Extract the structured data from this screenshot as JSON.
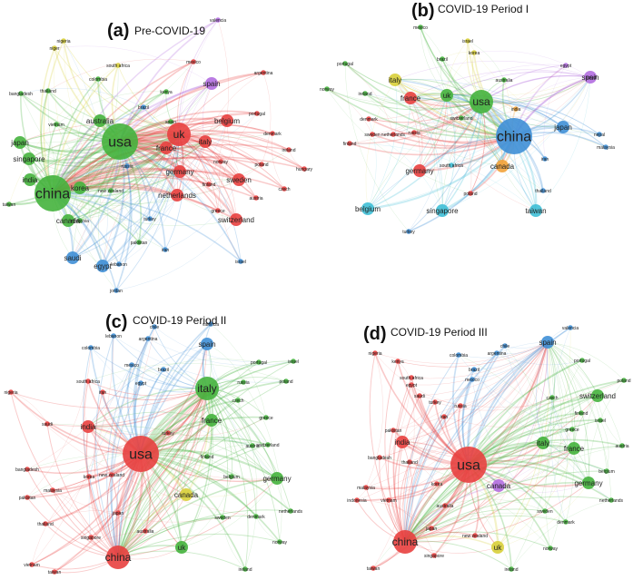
{
  "panels": [
    {
      "id": "a",
      "letter": "(a)",
      "subtitle": "Pre-COVID-19",
      "nodes": [
        {
          "label": "usa",
          "c": "green",
          "s": 3
        },
        {
          "label": "china",
          "c": "green",
          "s": 3
        },
        {
          "label": "uk",
          "c": "red",
          "s": 2
        },
        {
          "label": "france",
          "c": "red",
          "s": 1
        },
        {
          "label": "italy",
          "c": "red",
          "s": 1
        },
        {
          "label": "germany",
          "c": "red",
          "s": 1
        },
        {
          "label": "australia",
          "c": "green",
          "s": 1
        },
        {
          "label": "japan",
          "c": "green",
          "s": 1
        },
        {
          "label": "singapore",
          "c": "green",
          "s": 1
        },
        {
          "label": "india",
          "c": "green",
          "s": 1
        },
        {
          "label": "korea",
          "c": "green",
          "s": 1
        },
        {
          "label": "canada",
          "c": "green",
          "s": 1
        },
        {
          "label": "saudi",
          "c": "blue",
          "s": 1
        },
        {
          "label": "egypt",
          "c": "blue",
          "s": 1
        },
        {
          "label": "spain",
          "c": "purple",
          "s": 1
        },
        {
          "label": "mexico",
          "c": "red",
          "s": 0
        },
        {
          "label": "brazil",
          "c": "blue",
          "s": 0
        },
        {
          "label": "kenya",
          "c": "green",
          "s": 0
        },
        {
          "label": "south africa",
          "c": "yellow",
          "s": 0
        },
        {
          "label": "colombia",
          "c": "green",
          "s": 0
        },
        {
          "label": "nigeria",
          "c": "yellow",
          "s": 0
        },
        {
          "label": "niger",
          "c": "yellow",
          "s": 0
        },
        {
          "label": "thailand",
          "c": "green",
          "s": 0
        },
        {
          "label": "bangladesh",
          "c": "green",
          "s": 0
        },
        {
          "label": "vietnam",
          "c": "green",
          "s": 0
        },
        {
          "label": "taiwan",
          "c": "green",
          "s": 0
        },
        {
          "label": "malaysia",
          "c": "green",
          "s": 0
        },
        {
          "label": "pakistan",
          "c": "green",
          "s": 0
        },
        {
          "label": "lebanon",
          "c": "blue",
          "s": 0
        },
        {
          "label": "jordan",
          "c": "blue",
          "s": 0
        },
        {
          "label": "iran",
          "c": "blue",
          "s": 0
        },
        {
          "label": "turkey",
          "c": "blue",
          "s": 0
        },
        {
          "label": "russia",
          "c": "blue",
          "s": 0
        },
        {
          "label": "spain",
          "c": "green",
          "s": 0
        },
        {
          "label": "new zealand",
          "c": "green",
          "s": 0
        },
        {
          "label": "netherlands",
          "c": "red",
          "s": 1
        },
        {
          "label": "switzerland",
          "c": "red",
          "s": 1
        },
        {
          "label": "sweden",
          "c": "red",
          "s": 1
        },
        {
          "label": "belgium",
          "c": "red",
          "s": 1
        },
        {
          "label": "portugal",
          "c": "red",
          "s": 0
        },
        {
          "label": "denmark",
          "c": "red",
          "s": 0
        },
        {
          "label": "ireland",
          "c": "red",
          "s": 0
        },
        {
          "label": "poland",
          "c": "red",
          "s": 0
        },
        {
          "label": "finland",
          "c": "red",
          "s": 0
        },
        {
          "label": "norway",
          "c": "red",
          "s": 0
        },
        {
          "label": "austria",
          "c": "red",
          "s": 0
        },
        {
          "label": "greece",
          "c": "red",
          "s": 0
        },
        {
          "label": "czech",
          "c": "red",
          "s": 0
        },
        {
          "label": "hungary",
          "c": "red",
          "s": 0
        },
        {
          "label": "argentina",
          "c": "red",
          "s": 0
        },
        {
          "label": "valencia",
          "c": "purple",
          "s": 0
        },
        {
          "label": "israel",
          "c": "blue",
          "s": 0
        }
      ]
    },
    {
      "id": "b",
      "letter": "(b)",
      "subtitle": "COVID-19 Period I",
      "nodes": [
        {
          "label": "china",
          "c": "blue",
          "s": 3
        },
        {
          "label": "usa",
          "c": "green",
          "s": 2
        },
        {
          "label": "uk",
          "c": "green",
          "s": 1
        },
        {
          "label": "france",
          "c": "red",
          "s": 1
        },
        {
          "label": "italy",
          "c": "yellow",
          "s": 1
        },
        {
          "label": "spain",
          "c": "purple",
          "s": 1
        },
        {
          "label": "canada",
          "c": "orange",
          "s": 1
        },
        {
          "label": "germany",
          "c": "red",
          "s": 1
        },
        {
          "label": "japan",
          "c": "blue",
          "s": 1
        },
        {
          "label": "singapore",
          "c": "cyan",
          "s": 1
        },
        {
          "label": "taiwan",
          "c": "cyan",
          "s": 1
        },
        {
          "label": "belgium",
          "c": "cyan",
          "s": 1
        },
        {
          "label": "korea",
          "c": "yellow",
          "s": 0
        },
        {
          "label": "australia",
          "c": "green",
          "s": 0
        },
        {
          "label": "switzerland",
          "c": "green",
          "s": 0
        },
        {
          "label": "netherlands",
          "c": "red",
          "s": 0
        },
        {
          "label": "sweden",
          "c": "red",
          "s": 0
        },
        {
          "label": "finland",
          "c": "red",
          "s": 0
        },
        {
          "label": "denmark",
          "c": "red",
          "s": 0
        },
        {
          "label": "brazil",
          "c": "green",
          "s": 0
        },
        {
          "label": "israel",
          "c": "yellow",
          "s": 0
        },
        {
          "label": "mexico",
          "c": "green",
          "s": 0
        },
        {
          "label": "portugal",
          "c": "green",
          "s": 0
        },
        {
          "label": "norway",
          "c": "green",
          "s": 0
        },
        {
          "label": "egypt",
          "c": "purple",
          "s": 0
        },
        {
          "label": "saudi",
          "c": "purple",
          "s": 0
        },
        {
          "label": "nepal",
          "c": "blue",
          "s": 0
        },
        {
          "label": "malaysia",
          "c": "blue",
          "s": 0
        },
        {
          "label": "thailand",
          "c": "blue",
          "s": 0
        },
        {
          "label": "turkey",
          "c": "blue",
          "s": 0
        },
        {
          "label": "poland",
          "c": "red",
          "s": 0
        },
        {
          "label": "iran",
          "c": "blue",
          "s": 0
        },
        {
          "label": "india",
          "c": "orange",
          "s": 0
        },
        {
          "label": "south africa",
          "c": "cyan",
          "s": 0
        },
        {
          "label": "russia",
          "c": "red",
          "s": 0
        },
        {
          "label": "ireland",
          "c": "green",
          "s": 0
        }
      ]
    },
    {
      "id": "c",
      "letter": "(c)",
      "subtitle": "COVID-19 Period II",
      "nodes": [
        {
          "label": "usa",
          "c": "red",
          "s": 3
        },
        {
          "label": "china",
          "c": "red",
          "s": 2
        },
        {
          "label": "italy",
          "c": "green",
          "s": 2
        },
        {
          "label": "india",
          "c": "red",
          "s": 1
        },
        {
          "label": "france",
          "c": "green",
          "s": 1
        },
        {
          "label": "germany",
          "c": "green",
          "s": 1
        },
        {
          "label": "spain",
          "c": "blue",
          "s": 1
        },
        {
          "label": "uk",
          "c": "green",
          "s": 1
        },
        {
          "label": "canada",
          "c": "yellow",
          "s": 1
        },
        {
          "label": "brazil",
          "c": "blue",
          "s": 0
        },
        {
          "label": "egypt",
          "c": "blue",
          "s": 0
        },
        {
          "label": "mexico",
          "c": "blue",
          "s": 0
        },
        {
          "label": "netherlands",
          "c": "green",
          "s": 0
        },
        {
          "label": "switzerland",
          "c": "green",
          "s": 0
        },
        {
          "label": "belgium",
          "c": "green",
          "s": 0
        },
        {
          "label": "japan",
          "c": "red",
          "s": 0
        },
        {
          "label": "korea",
          "c": "red",
          "s": 0
        },
        {
          "label": "australia",
          "c": "red",
          "s": 0
        },
        {
          "label": "singapore",
          "c": "red",
          "s": 0
        },
        {
          "label": "saudi",
          "c": "red",
          "s": 0
        },
        {
          "label": "pakistan",
          "c": "red",
          "s": 0
        },
        {
          "label": "bangladesh",
          "c": "red",
          "s": 0
        },
        {
          "label": "thailand",
          "c": "red",
          "s": 0
        },
        {
          "label": "vietnam",
          "c": "red",
          "s": 0
        },
        {
          "label": "taiwan",
          "c": "red",
          "s": 0
        },
        {
          "label": "malaysia",
          "c": "red",
          "s": 0
        },
        {
          "label": "nigeria",
          "c": "red",
          "s": 0
        },
        {
          "label": "colombia",
          "c": "blue",
          "s": 0
        },
        {
          "label": "argentina",
          "c": "blue",
          "s": 0
        },
        {
          "label": "chile",
          "c": "blue",
          "s": 0
        },
        {
          "label": "lebanon",
          "c": "blue",
          "s": 0
        },
        {
          "label": "turkey",
          "c": "red",
          "s": 0
        },
        {
          "label": "sweden",
          "c": "green",
          "s": 0
        },
        {
          "label": "denmark",
          "c": "green",
          "s": 0
        },
        {
          "label": "austria",
          "c": "green",
          "s": 0
        },
        {
          "label": "israel",
          "c": "green",
          "s": 0
        },
        {
          "label": "portugal",
          "c": "green",
          "s": 0
        },
        {
          "label": "poland",
          "c": "green",
          "s": 0
        },
        {
          "label": "greece",
          "c": "green",
          "s": 0
        },
        {
          "label": "ireland",
          "c": "green",
          "s": 0
        },
        {
          "label": "norway",
          "c": "green",
          "s": 0
        },
        {
          "label": "finland",
          "c": "green",
          "s": 0
        },
        {
          "label": "new zealand",
          "c": "red",
          "s": 0
        },
        {
          "label": "iran",
          "c": "red",
          "s": 0
        },
        {
          "label": "south africa",
          "c": "red",
          "s": 0
        },
        {
          "label": "valencia",
          "c": "blue",
          "s": 0
        },
        {
          "label": "czech",
          "c": "green",
          "s": 0
        },
        {
          "label": "russia",
          "c": "green",
          "s": 0
        }
      ]
    },
    {
      "id": "d",
      "letter": "(d)",
      "subtitle": "COVID-19 Period III",
      "nodes": [
        {
          "label": "usa",
          "c": "red",
          "s": 3
        },
        {
          "label": "china",
          "c": "red",
          "s": 2
        },
        {
          "label": "spain",
          "c": "blue",
          "s": 1
        },
        {
          "label": "italy",
          "c": "green",
          "s": 1
        },
        {
          "label": "france",
          "c": "green",
          "s": 1
        },
        {
          "label": "germany",
          "c": "green",
          "s": 1
        },
        {
          "label": "india",
          "c": "red",
          "s": 1
        },
        {
          "label": "uk",
          "c": "yellow",
          "s": 1
        },
        {
          "label": "canada",
          "c": "purple",
          "s": 1
        },
        {
          "label": "brazil",
          "c": "blue",
          "s": 0
        },
        {
          "label": "chile",
          "c": "blue",
          "s": 0
        },
        {
          "label": "argentina",
          "c": "blue",
          "s": 0
        },
        {
          "label": "colombia",
          "c": "blue",
          "s": 0
        },
        {
          "label": "mexico",
          "c": "blue",
          "s": 0
        },
        {
          "label": "valencia",
          "c": "blue",
          "s": 0
        },
        {
          "label": "switzerland",
          "c": "green",
          "s": 1
        },
        {
          "label": "belgium",
          "c": "green",
          "s": 0
        },
        {
          "label": "netherlands",
          "c": "green",
          "s": 0
        },
        {
          "label": "portugal",
          "c": "green",
          "s": 0
        },
        {
          "label": "greece",
          "c": "green",
          "s": 0
        },
        {
          "label": "sweden",
          "c": "green",
          "s": 0
        },
        {
          "label": "denmark",
          "c": "green",
          "s": 0
        },
        {
          "label": "austria",
          "c": "green",
          "s": 0
        },
        {
          "label": "israel",
          "c": "green",
          "s": 0
        },
        {
          "label": "ireland",
          "c": "green",
          "s": 0
        },
        {
          "label": "norway",
          "c": "green",
          "s": 0
        },
        {
          "label": "korea",
          "c": "red",
          "s": 0
        },
        {
          "label": "australia",
          "c": "red",
          "s": 0
        },
        {
          "label": "japan",
          "c": "red",
          "s": 0
        },
        {
          "label": "singapore",
          "c": "red",
          "s": 0
        },
        {
          "label": "taiwan",
          "c": "red",
          "s": 0
        },
        {
          "label": "pakistan",
          "c": "red",
          "s": 0
        },
        {
          "label": "bangladesh",
          "c": "red",
          "s": 0
        },
        {
          "label": "thailand",
          "c": "red",
          "s": 0
        },
        {
          "label": "malaysia",
          "c": "red",
          "s": 0
        },
        {
          "label": "indonesia",
          "c": "red",
          "s": 0
        },
        {
          "label": "vietnam",
          "c": "red",
          "s": 0
        },
        {
          "label": "egypt",
          "c": "red",
          "s": 0
        },
        {
          "label": "turkey",
          "c": "red",
          "s": 0
        },
        {
          "label": "iran",
          "c": "red",
          "s": 0
        },
        {
          "label": "saudi",
          "c": "red",
          "s": 0
        },
        {
          "label": "nigeria",
          "c": "red",
          "s": 0
        },
        {
          "label": "south africa",
          "c": "red",
          "s": 0
        },
        {
          "label": "new zealand",
          "c": "red",
          "s": 0
        },
        {
          "label": "kenya",
          "c": "red",
          "s": 0
        },
        {
          "label": "czech",
          "c": "green",
          "s": 0
        },
        {
          "label": "finland",
          "c": "green",
          "s": 0
        },
        {
          "label": "poland",
          "c": "green",
          "s": 0
        },
        {
          "label": "russia",
          "c": "red",
          "s": 0
        }
      ]
    }
  ],
  "palette": {
    "red": "#e8403f",
    "green": "#45b33d",
    "blue": "#3f8fd6",
    "yellow": "#d8cf3a",
    "purple": "#b36ee0",
    "orange": "#f2a33a",
    "cyan": "#3fbfd6"
  }
}
